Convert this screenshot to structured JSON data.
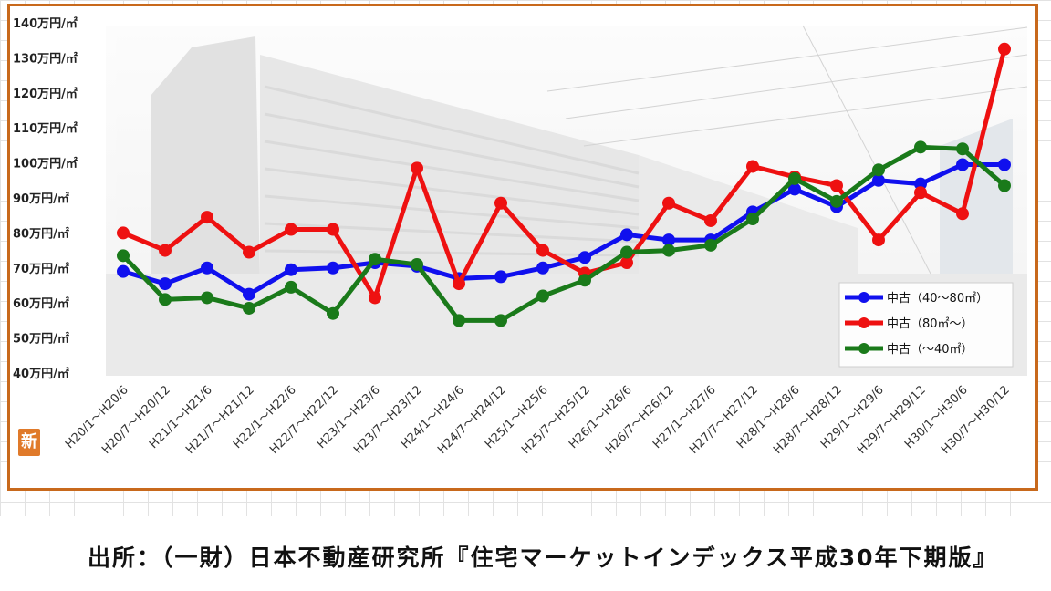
{
  "chart_data": {
    "type": "line",
    "title": "",
    "xlabel": "",
    "ylabel": "",
    "ylim": [
      40,
      140
    ],
    "yticks": [
      40,
      50,
      60,
      70,
      80,
      90,
      100,
      110,
      120,
      130,
      140
    ],
    "ytick_labels": [
      "40万円/㎡",
      "50万円/㎡",
      "60万円/㎡",
      "70万円/㎡",
      "80万円/㎡",
      "90万円/㎡",
      "100万円/㎡",
      "110万円/㎡",
      "120万円/㎡",
      "130万円/㎡",
      "140万円/㎡"
    ],
    "categories": [
      "H20/1～H20/6",
      "H20/7～H20/12",
      "H21/1～H21/6",
      "H21/7～H21/12",
      "H22/1～H22/6",
      "H22/7～H22/12",
      "H23/1～H23/6",
      "H23/7～H23/12",
      "H24/1～H24/6",
      "H24/7～H24/12",
      "H25/1～H25/6",
      "H25/7～H25/12",
      "H26/1～H26/6",
      "H26/7～H26/12",
      "H27/1～H27/6",
      "H27/7～H27/12",
      "H28/1～H28/6",
      "H28/7～H28/12",
      "H29/1～H29/6",
      "H29/7～H29/12",
      "H30/1～H30/6",
      "H30/7～H30/12"
    ],
    "series": [
      {
        "name": "中古（40～80㎡）",
        "color": "#1010ee",
        "values": [
          69,
          65.5,
          70,
          62.5,
          69.5,
          70,
          71.5,
          70.5,
          67,
          67.5,
          70,
          73,
          79.5,
          78,
          78,
          86,
          92.5,
          87.5,
          95,
          94,
          99.5,
          99.5
        ]
      },
      {
        "name": "中古（80㎡～）",
        "color": "#ee1111",
        "values": [
          80,
          75,
          84.5,
          74.5,
          81,
          81,
          61.5,
          98.5,
          65.5,
          88.5,
          75,
          68.5,
          71.5,
          88.5,
          83.5,
          99,
          96,
          93.5,
          78,
          91.5,
          85.5,
          132.5
        ]
      },
      {
        "name": "中古（～40㎡）",
        "color": "#1a7a1a",
        "values": [
          73.5,
          61,
          61.5,
          58.5,
          64.5,
          57,
          72.5,
          71,
          55,
          55,
          62,
          66.5,
          74.5,
          75,
          76.5,
          84,
          95.5,
          89,
          98,
          104.5,
          104,
          93.5
        ]
      }
    ],
    "grid": false,
    "legend_position": "lower-right"
  },
  "corner_mark": "新",
  "source": "出所：（一財）日本不動産研究所『住宅マーケットインデックス平成30年下期版』"
}
